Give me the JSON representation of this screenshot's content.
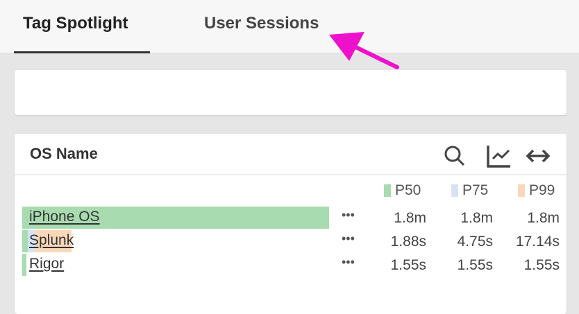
{
  "tabs": [
    {
      "label": "Tag Spotlight",
      "active": true
    },
    {
      "label": "User Sessions",
      "active": false
    }
  ],
  "annotation": {
    "type": "arrow",
    "color": "#ee11cc",
    "points_to": "User Sessions"
  },
  "panel": {
    "title": "OS Name",
    "icons": [
      "search-icon",
      "line-chart-icon",
      "expand-horizontal-icon"
    ],
    "legend": [
      {
        "label": "P50",
        "color": "#a8dbb0"
      },
      {
        "label": "P75",
        "color": "#d6e3f4"
      },
      {
        "label": "P99",
        "color": "#f8d8b8"
      }
    ],
    "rows": [
      {
        "name": "iPhone OS",
        "more": "•••",
        "p50": "1.8m",
        "p75": "1.8m",
        "p99": "1.8m",
        "bar_fraction": {
          "p50": 1.0,
          "p75": 1.0,
          "p99": 1.0
        }
      },
      {
        "name": "Splunk",
        "more": "•••",
        "p50": "1.88s",
        "p75": "4.75s",
        "p99": "17.14s",
        "bar_fraction": {
          "p50": 0.017,
          "p75": 0.044,
          "p99": 0.16
        }
      },
      {
        "name": "Rigor",
        "more": "•••",
        "p50": "1.55s",
        "p75": "1.55s",
        "p99": "1.55s",
        "bar_fraction": {
          "p50": 0.014,
          "p75": 0.014,
          "p99": 0.014
        }
      }
    ]
  }
}
